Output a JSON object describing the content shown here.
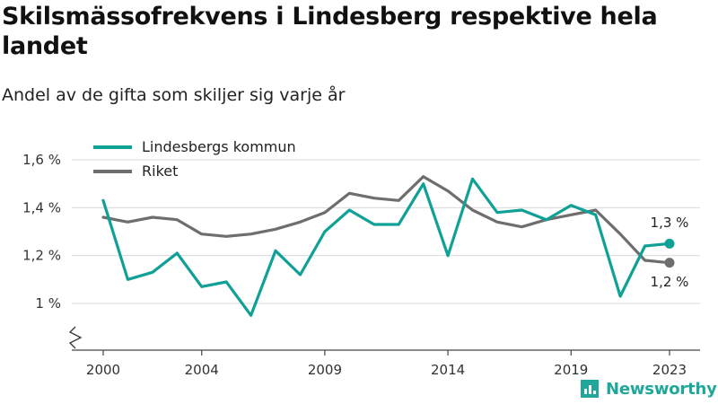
{
  "title": "Skilsmässofrekvens i Lindesberg respektive hela landet",
  "subtitle": "Andel av de gifta som skiljer sig varje år",
  "brand": "Newsworthy",
  "colors": {
    "lindesberg": "#0fa196",
    "riket": "#6e6e6e",
    "brand": "#1fa89a"
  },
  "chart_data": {
    "type": "line",
    "x": [
      2000,
      2001,
      2002,
      2003,
      2004,
      2005,
      2006,
      2007,
      2008,
      2009,
      2010,
      2011,
      2012,
      2013,
      2014,
      2015,
      2016,
      2017,
      2018,
      2019,
      2020,
      2021,
      2022,
      2023
    ],
    "series": [
      {
        "name": "Lindesbergs kommun",
        "color": "#0fa196",
        "values": [
          1.43,
          1.1,
          1.13,
          1.21,
          1.07,
          1.09,
          0.95,
          1.22,
          1.12,
          1.3,
          1.39,
          1.33,
          1.33,
          1.5,
          1.2,
          1.52,
          1.38,
          1.39,
          1.35,
          1.41,
          1.37,
          1.03,
          1.24,
          1.25
        ],
        "end_label": "1,3 %"
      },
      {
        "name": "Riket",
        "color": "#6e6e6e",
        "values": [
          1.36,
          1.34,
          1.36,
          1.35,
          1.29,
          1.28,
          1.29,
          1.31,
          1.34,
          1.38,
          1.46,
          1.44,
          1.43,
          1.53,
          1.47,
          1.39,
          1.34,
          1.32,
          1.35,
          1.37,
          1.39,
          1.29,
          1.18,
          1.17
        ],
        "end_label": "1,2 %"
      }
    ],
    "y_ticks": [
      {
        "value": 1.0,
        "label": "1 %"
      },
      {
        "value": 1.2,
        "label": "1,2 %"
      },
      {
        "value": 1.4,
        "label": "1,4 %"
      },
      {
        "value": 1.6,
        "label": "1,6 %"
      }
    ],
    "x_ticks": [
      2000,
      2004,
      2009,
      2014,
      2019,
      2023
    ],
    "ylim": [
      0.85,
      1.62
    ],
    "y_axis_broken": true,
    "grid": "horizontal",
    "legend": "top-left"
  }
}
